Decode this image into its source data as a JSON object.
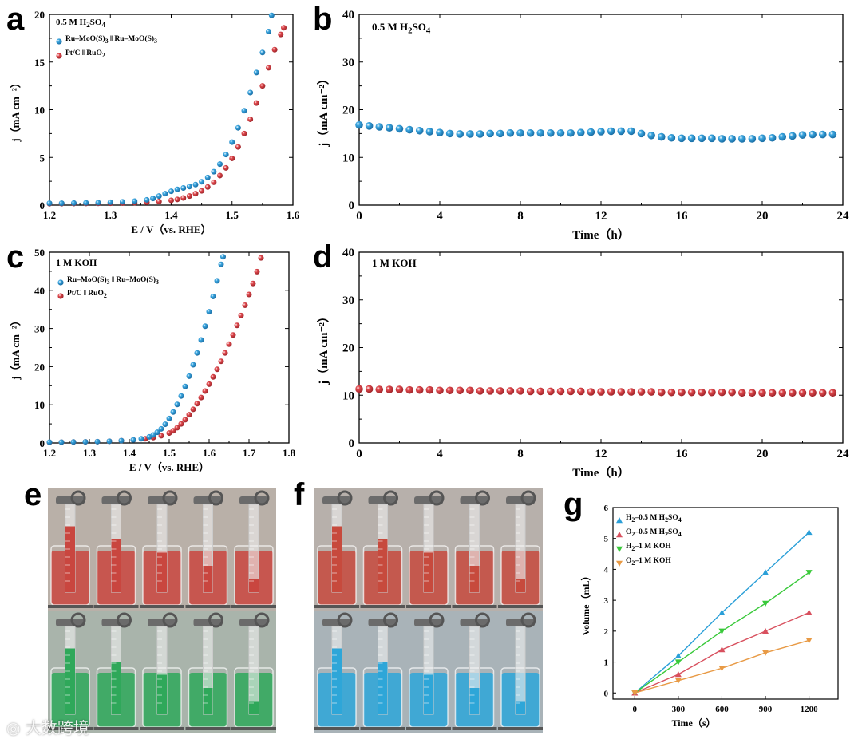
{
  "panels": {
    "a": "a",
    "b": "b",
    "c": "c",
    "d": "d",
    "e": "e",
    "f": "f",
    "g": "g"
  },
  "watermark": "大数跨境",
  "colors": {
    "blue": "#3aa6e0",
    "red": "#e0484d",
    "green": "#2ec845",
    "orange": "#f0a04b",
    "g_blue": "#2a9fd8",
    "g_red": "#d8505e",
    "g_green": "#39c93a",
    "g_orange": "#e89a45"
  },
  "chart_data": [
    {
      "id": "a",
      "type": "scatter",
      "annotation_html": "0.5 M H<sub>2</sub>SO<sub>4</sub>",
      "annotation_text": "0.5 M H2SO4",
      "xlabel": "E / V（vs. RHE）",
      "ylabel": "j（mA cm⁻²）",
      "xlim": [
        1.2,
        1.6
      ],
      "ylim": [
        0,
        20
      ],
      "xticks": [
        "1.2",
        "1.3",
        "1.4",
        "1.5",
        "1.6"
      ],
      "yticks": [
        "0",
        "5",
        "10",
        "15",
        "20"
      ],
      "legend": "top-left",
      "series": [
        {
          "name": "Ru–MoO(S)3 || Ru–MoO(S)3",
          "x": [
            1.2,
            1.22,
            1.24,
            1.26,
            1.28,
            1.3,
            1.32,
            1.34,
            1.36,
            1.37,
            1.38,
            1.39,
            1.4,
            1.41,
            1.42,
            1.43,
            1.44,
            1.45,
            1.46,
            1.47,
            1.48,
            1.49,
            1.5,
            1.51,
            1.52,
            1.53,
            1.54,
            1.55,
            1.56,
            1.565
          ],
          "y": [
            0.2,
            0.2,
            0.22,
            0.24,
            0.26,
            0.3,
            0.35,
            0.42,
            0.55,
            0.7,
            0.95,
            1.2,
            1.45,
            1.65,
            1.8,
            1.95,
            2.15,
            2.45,
            2.9,
            3.5,
            4.3,
            5.3,
            6.6,
            8.1,
            9.9,
            11.8,
            13.9,
            16.0,
            18.2,
            19.9
          ]
        },
        {
          "name": "Pt/C || RuO2",
          "x": [
            1.2,
            1.22,
            1.24,
            1.26,
            1.28,
            1.3,
            1.32,
            1.34,
            1.36,
            1.38,
            1.4,
            1.41,
            1.42,
            1.43,
            1.44,
            1.45,
            1.46,
            1.47,
            1.48,
            1.49,
            1.5,
            1.51,
            1.52,
            1.53,
            1.54,
            1.55,
            1.56,
            1.57,
            1.58,
            1.585
          ],
          "y": [
            0.15,
            0.16,
            0.17,
            0.18,
            0.19,
            0.2,
            0.22,
            0.25,
            0.3,
            0.38,
            0.5,
            0.6,
            0.75,
            0.95,
            1.2,
            1.5,
            1.9,
            2.4,
            3.1,
            3.9,
            4.9,
            6.1,
            7.5,
            9.0,
            10.7,
            12.5,
            14.4,
            16.3,
            17.9,
            18.6
          ]
        }
      ]
    },
    {
      "id": "b",
      "type": "scatter",
      "annotation_html": "0.5 M H<sub>2</sub>SO<sub>4</sub>",
      "annotation_text": "0.5 M H2SO4",
      "xlabel": "Time（h）",
      "ylabel": "j（mA cm⁻²）",
      "xlim": [
        0,
        24
      ],
      "ylim": [
        0,
        40
      ],
      "xticks": [
        "0",
        "4",
        "8",
        "12",
        "16",
        "20",
        "24"
      ],
      "yticks": [
        "0",
        "10",
        "20",
        "30",
        "40"
      ],
      "series": [
        {
          "name": "",
          "x": [
            0,
            0.5,
            1,
            1.5,
            2,
            2.5,
            3,
            3.5,
            4,
            4.5,
            5,
            5.5,
            6,
            6.5,
            7,
            7.5,
            8,
            8.5,
            9,
            9.5,
            10,
            10.5,
            11,
            11.5,
            12,
            12.5,
            13,
            13.5,
            14,
            14.5,
            15,
            15.5,
            16,
            16.5,
            17,
            17.5,
            18,
            18.5,
            19,
            19.5,
            20,
            20.5,
            21,
            21.5,
            22,
            22.5,
            23,
            23.5
          ],
          "y": [
            16.8,
            16.6,
            16.4,
            16.2,
            16.0,
            15.8,
            15.6,
            15.4,
            15.2,
            15.0,
            14.9,
            14.9,
            14.9,
            15.0,
            15.0,
            15.1,
            15.1,
            15.1,
            15.1,
            15.1,
            15.1,
            15.1,
            15.2,
            15.3,
            15.4,
            15.5,
            15.5,
            15.5,
            15.0,
            14.6,
            14.3,
            14.1,
            14.0,
            14.0,
            14.0,
            14.0,
            13.9,
            13.9,
            13.9,
            13.9,
            14.0,
            14.1,
            14.3,
            14.5,
            14.7,
            14.8,
            14.8,
            14.8
          ]
        }
      ]
    },
    {
      "id": "c",
      "type": "scatter",
      "annotation_html": "1 M KOH",
      "annotation_text": "1 M KOH",
      "xlabel": "E / V（vs. RHE）",
      "ylabel": "j（mA cm⁻²）",
      "xlim": [
        1.2,
        1.8
      ],
      "ylim": [
        0,
        50
      ],
      "xticks": [
        "1.2",
        "1.3",
        "1.4",
        "1.5",
        "1.6",
        "1.7",
        "1.8"
      ],
      "yticks": [
        "0",
        "10",
        "20",
        "30",
        "40",
        "50"
      ],
      "legend": "top-left",
      "series": [
        {
          "name": "Ru–MoO(S)3 || Ru–MoO(S)3",
          "x": [
            1.2,
            1.23,
            1.26,
            1.29,
            1.32,
            1.35,
            1.38,
            1.41,
            1.43,
            1.45,
            1.46,
            1.47,
            1.48,
            1.49,
            1.5,
            1.51,
            1.52,
            1.53,
            1.54,
            1.55,
            1.56,
            1.57,
            1.58,
            1.59,
            1.6,
            1.61,
            1.62,
            1.63,
            1.635
          ],
          "y": [
            0.2,
            0.2,
            0.25,
            0.3,
            0.35,
            0.45,
            0.6,
            0.8,
            1.1,
            1.6,
            2.1,
            2.8,
            3.7,
            4.9,
            6.4,
            8.1,
            10.1,
            12.3,
            14.8,
            17.5,
            20.5,
            23.6,
            27.0,
            30.6,
            34.4,
            38.4,
            42.5,
            46.8,
            48.8
          ]
        },
        {
          "name": "Pt/C || RuO2",
          "x": [
            1.2,
            1.23,
            1.26,
            1.29,
            1.32,
            1.35,
            1.38,
            1.41,
            1.44,
            1.46,
            1.48,
            1.5,
            1.51,
            1.52,
            1.53,
            1.54,
            1.55,
            1.56,
            1.57,
            1.58,
            1.59,
            1.6,
            1.61,
            1.62,
            1.63,
            1.64,
            1.65,
            1.66,
            1.67,
            1.68,
            1.69,
            1.7,
            1.71,
            1.72,
            1.73
          ],
          "y": [
            0.15,
            0.2,
            0.25,
            0.3,
            0.35,
            0.45,
            0.6,
            0.8,
            1.1,
            1.4,
            1.9,
            2.6,
            3.2,
            4.0,
            5.0,
            6.1,
            7.4,
            8.8,
            10.3,
            11.9,
            13.6,
            15.4,
            17.3,
            19.3,
            21.4,
            23.6,
            25.9,
            28.3,
            30.8,
            33.4,
            36.1,
            38.9,
            41.8,
            44.9,
            48.5
          ]
        }
      ]
    },
    {
      "id": "d",
      "type": "scatter",
      "annotation_html": "1 M KOH",
      "annotation_text": "1 M KOH",
      "xlabel": "Time（h）",
      "ylabel": "j（mA cm⁻²）",
      "xlim": [
        0,
        24
      ],
      "ylim": [
        0,
        40
      ],
      "xticks": [
        "0",
        "4",
        "8",
        "12",
        "16",
        "20",
        "24"
      ],
      "yticks": [
        "0",
        "10",
        "20",
        "30",
        "40"
      ],
      "series": [
        {
          "name": "",
          "x": [
            0,
            0.5,
            1,
            1.5,
            2,
            2.5,
            3,
            3.5,
            4,
            4.5,
            5,
            5.5,
            6,
            6.5,
            7,
            7.5,
            8,
            8.5,
            9,
            9.5,
            10,
            10.5,
            11,
            11.5,
            12,
            12.5,
            13,
            13.5,
            14,
            14.5,
            15,
            15.5,
            16,
            16.5,
            17,
            17.5,
            18,
            18.5,
            19,
            19.5,
            20,
            20.5,
            21,
            21.5,
            22,
            22.5,
            23,
            23.5
          ],
          "y": [
            11.3,
            11.3,
            11.2,
            11.2,
            11.2,
            11.1,
            11.1,
            11.1,
            11.0,
            11.0,
            11.0,
            11.0,
            10.9,
            10.9,
            10.9,
            10.9,
            10.9,
            10.8,
            10.8,
            10.8,
            10.8,
            10.8,
            10.8,
            10.7,
            10.7,
            10.7,
            10.7,
            10.7,
            10.7,
            10.7,
            10.6,
            10.6,
            10.6,
            10.6,
            10.6,
            10.6,
            10.6,
            10.6,
            10.5,
            10.5,
            10.5,
            10.5,
            10.5,
            10.5,
            10.5,
            10.5,
            10.5,
            10.5
          ]
        }
      ]
    },
    {
      "id": "g",
      "type": "line",
      "xlabel": "Time（s）",
      "ylabel": "Volume（mL）",
      "xlim": [
        -150,
        1400
      ],
      "ylim": [
        -0.2,
        6
      ],
      "xticks": [
        "0",
        "300",
        "600",
        "900",
        "1200"
      ],
      "yticks": [
        "0",
        "1",
        "2",
        "3",
        "4",
        "5",
        "6"
      ],
      "legend": "top-left",
      "x": [
        0,
        300,
        600,
        900,
        1200
      ],
      "series": [
        {
          "name": "H2–0.5 M H2SO4",
          "label_html": "H<sub>2</sub>–0.5 M H<sub>2</sub>SO<sub>4</sub>",
          "values": [
            0,
            1.2,
            2.6,
            3.9,
            5.2
          ],
          "marker": "up"
        },
        {
          "name": "O2–0.5 M H2SO4",
          "label_html": "O<sub>2</sub>–0.5 M H<sub>2</sub>SO<sub>4</sub>",
          "values": [
            0,
            0.6,
            1.4,
            2.0,
            2.6
          ],
          "marker": "up"
        },
        {
          "name": "H2–1 M KOH",
          "label_html": "H<sub>2</sub>–1 M KOH",
          "values": [
            0,
            1.0,
            2.0,
            2.9,
            3.9
          ],
          "marker": "down"
        },
        {
          "name": "O2–1 M KOH",
          "label_html": "O<sub>2</sub>–1 M KOH",
          "values": [
            0,
            0.4,
            0.8,
            1.3,
            1.7
          ],
          "marker": "down"
        }
      ]
    }
  ]
}
